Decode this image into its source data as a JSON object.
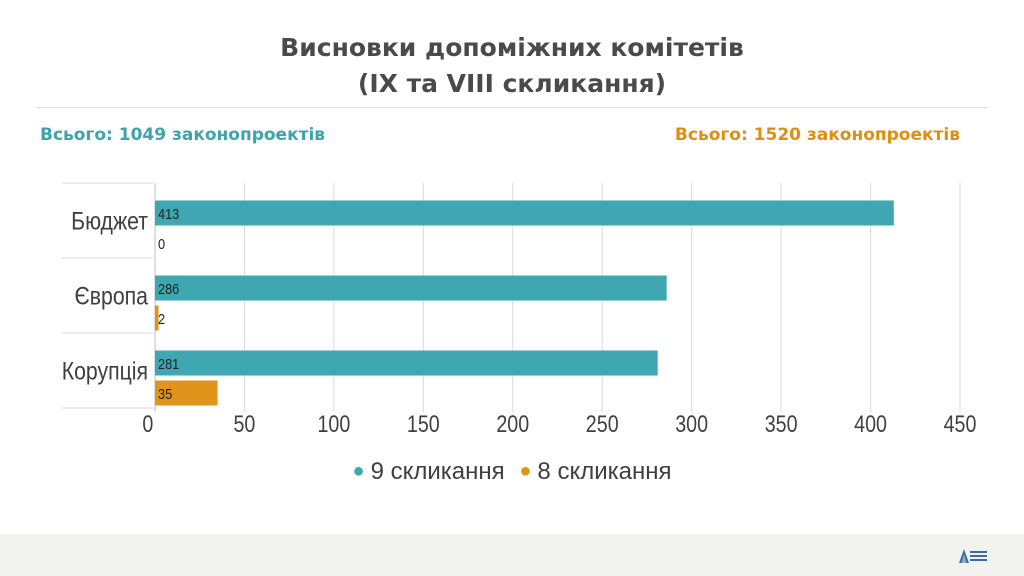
{
  "title": {
    "line1": "Висновки допоміжних комітетів",
    "line2": "(IX та VIII скликання)"
  },
  "totals": {
    "left": "Всього: 1049 законопроектів",
    "right": "Всього: 1520 законопроектів"
  },
  "colors": {
    "series_9": "#3ea7b1",
    "series_8": "#e0951a",
    "total_left": "#3ea3ab",
    "total_right": "#dc8f12",
    "gridline": "#d9d9d9",
    "axis_text": "#3f3f3f"
  },
  "chart_data": {
    "type": "bar",
    "orientation": "horizontal",
    "categories": [
      "Бюджет",
      "Європа",
      "Корупція"
    ],
    "series": [
      {
        "name": "9 скликання",
        "values": [
          413,
          286,
          281
        ]
      },
      {
        "name": "8 скликання",
        "values": [
          0,
          2,
          35
        ]
      }
    ],
    "x_ticks": [
      "0",
      "50",
      "100",
      "150",
      "200",
      "250",
      "300",
      "350",
      "400",
      "450"
    ],
    "xlim": [
      0,
      450
    ],
    "grid": true,
    "legend_position": "bottom"
  },
  "legend": {
    "dot": "●",
    "items": [
      "9 скликання",
      "8 скликання"
    ]
  },
  "footer": {
    "logo_icon": "mountain-logo-icon"
  }
}
